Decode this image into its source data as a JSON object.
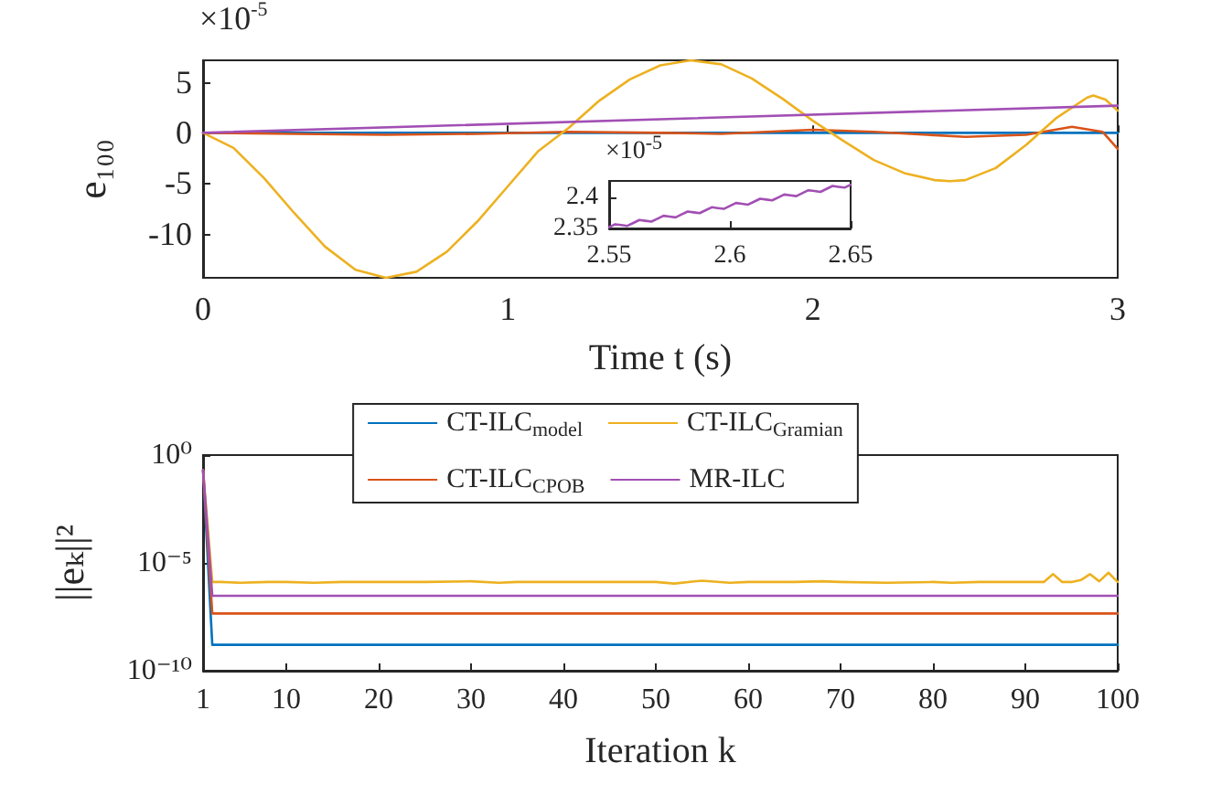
{
  "chart_data": [
    {
      "type": "line",
      "xlabel": "Time t (s)",
      "ylabel": "e₁₀₀",
      "annotations": [
        "×10$^{-5}$"
      ],
      "marker": "none",
      "line_style": "solid",
      "xlim": [
        0,
        3
      ],
      "xticks": [
        0,
        1,
        2,
        3
      ],
      "ylim": [
        -14.4,
        7.2
      ],
      "yticks": [
        -10,
        -5,
        0,
        5
      ],
      "series": [
        {
          "color": "#0072bd",
          "x": [
            0,
            3
          ],
          "values": [
            0,
            0
          ]
        },
        {
          "color": "#d95319",
          "x": [
            0,
            0.3,
            0.6,
            0.9,
            1.2,
            1.5,
            1.7,
            2.0,
            2.2,
            2.5,
            2.7,
            2.85,
            2.95,
            3.0
          ],
          "values": [
            0,
            -0.1,
            -0.2,
            -0.1,
            0.1,
            0,
            -0.1,
            0.3,
            0.1,
            -0.4,
            -0.2,
            0.6,
            0.1,
            -1.6
          ]
        },
        {
          "color": "#edb120",
          "x": [
            0,
            0.1,
            0.2,
            0.3,
            0.4,
            0.5,
            0.6,
            0.7,
            0.8,
            0.9,
            1.0,
            1.1,
            1.2,
            1.3,
            1.4,
            1.5,
            1.6,
            1.7,
            1.8,
            1.9,
            2.0,
            2.1,
            2.2,
            2.3,
            2.4,
            2.45,
            2.5,
            2.6,
            2.7,
            2.8,
            2.9,
            2.92,
            2.96,
            3.0
          ],
          "values": [
            0,
            -1.5,
            -4.5,
            -8,
            -11.3,
            -13.6,
            -14.4,
            -13.8,
            -11.8,
            -8.8,
            -5.3,
            -1.8,
            0.5,
            3.2,
            5.3,
            6.7,
            7.2,
            6.8,
            5.4,
            3.4,
            1.2,
            -0.8,
            -2.7,
            -4,
            -4.7,
            -4.8,
            -4.7,
            -3.5,
            -1.2,
            1.5,
            3.5,
            3.7,
            3.3,
            2.2
          ]
        },
        {
          "color": "#a24fb4",
          "x": [
            0,
            3
          ],
          "values": [
            0,
            2.7
          ]
        }
      ]
    },
    {
      "type": "line",
      "annotations": [
        "×10$^{-5}$"
      ],
      "marker": "none",
      "line_style": "solid",
      "xlim": [
        2.55,
        2.65
      ],
      "xticks": [
        2.55,
        2.6,
        2.65
      ],
      "ylim": [
        2.35,
        2.426
      ],
      "yticks": [
        2.35,
        2.4
      ],
      "series": [
        {
          "color": "#a24fb4",
          "x": [
            2.55,
            2.5525,
            2.555,
            2.5575,
            2.56,
            2.5625,
            2.565,
            2.5675,
            2.57,
            2.5725,
            2.575,
            2.5775,
            2.58,
            2.5825,
            2.585,
            2.5875,
            2.59,
            2.5925,
            2.595,
            2.5975,
            2.6,
            2.6025,
            2.605,
            2.6075,
            2.61,
            2.6125,
            2.615,
            2.6175,
            2.62,
            2.6225,
            2.625,
            2.6275,
            2.63,
            2.6325,
            2.635,
            2.6375,
            2.64,
            2.6425,
            2.645,
            2.6475,
            2.65
          ],
          "values": [
            2.352,
            2.3567,
            2.3554,
            2.3541,
            2.3588,
            2.3635,
            2.3622,
            2.3609,
            2.3656,
            2.3703,
            2.369,
            2.3677,
            2.3724,
            2.3771,
            2.3758,
            2.3745,
            2.3792,
            2.3839,
            2.3826,
            2.3813,
            2.386,
            2.3907,
            2.3894,
            2.3881,
            2.3928,
            2.3975,
            2.3962,
            2.3949,
            2.3996,
            2.4043,
            2.403,
            2.4017,
            2.4064,
            2.4111,
            2.4098,
            2.4085,
            2.4132,
            2.4179,
            2.4166,
            2.4153,
            2.42
          ]
        }
      ]
    },
    {
      "type": "line",
      "xlabel": "Iteration k",
      "ylabel": "||eₖ||²",
      "legend": "top",
      "log": "y",
      "marker": "none",
      "line_style": "solid",
      "xlim": [
        1,
        100
      ],
      "xticks": [
        1,
        10,
        20,
        30,
        40,
        50,
        60,
        70,
        80,
        90,
        100
      ],
      "ylim": [
        1e-10,
        1
      ],
      "yticks": [
        {
          "value": 1e-10,
          "label": "10⁻¹⁰"
        },
        {
          "value": 1e-05,
          "label": "10⁻⁵"
        },
        {
          "value": 1,
          "label": "10⁰"
        }
      ],
      "series": [
        {
          "name": "CT-ILC$_{model}$",
          "color": "#0072bd",
          "x": [
            1,
            2,
            100
          ],
          "values": [
            0.2,
            1.6e-09,
            1.6e-09
          ]
        },
        {
          "name": "CT-ILC$_{Gramian}$",
          "color": "#edb120",
          "x": [
            1,
            2,
            3,
            5,
            8,
            10,
            13,
            16,
            20,
            25,
            30,
            33,
            35,
            40,
            45,
            50,
            52,
            55,
            58,
            60,
            65,
            68,
            70,
            75,
            80,
            82,
            85,
            90,
            92,
            93,
            94,
            95,
            96,
            97,
            98,
            99,
            100
          ],
          "values": [
            0.2,
            1.3e-06,
            1.3e-06,
            1.2e-06,
            1.3e-06,
            1.3e-06,
            1.2e-06,
            1.3e-06,
            1.3e-06,
            1.3e-06,
            1.4e-06,
            1.2e-06,
            1.3e-06,
            1.3e-06,
            1.3e-06,
            1.3e-06,
            1.1e-06,
            1.5e-06,
            1.2e-06,
            1.3e-06,
            1.3e-06,
            1.4e-06,
            1.3e-06,
            1.2e-06,
            1.3e-06,
            1.2e-06,
            1.3e-06,
            1.3e-06,
            1.3e-06,
            3e-06,
            1.3e-06,
            1.3e-06,
            1.6e-06,
            3e-06,
            1.4e-06,
            3.5e-06,
            1.3e-06
          ]
        },
        {
          "name": "CT-ILC$_{CPOB}$",
          "color": "#d95319",
          "x": [
            1,
            2,
            100
          ],
          "values": [
            0.2,
            4.5e-08,
            4.5e-08
          ]
        },
        {
          "name": "MR-ILC",
          "color": "#a24fb4",
          "x": [
            1,
            2,
            100
          ],
          "values": [
            0.2,
            3e-07,
            3e-07
          ]
        }
      ]
    }
  ]
}
